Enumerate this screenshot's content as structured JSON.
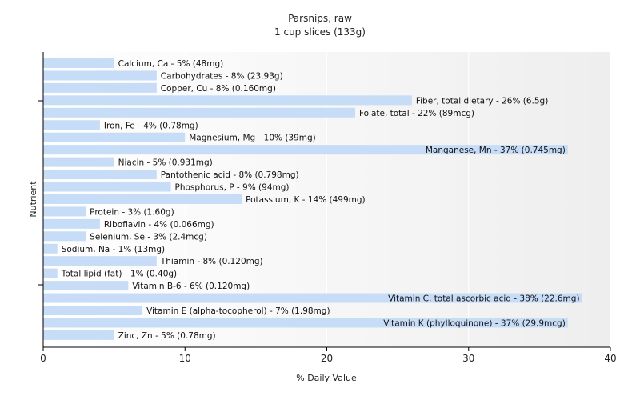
{
  "chart_data": {
    "type": "bar",
    "orientation": "horizontal",
    "title": "Parsnips, raw",
    "subtitle": "1 cup slices (133g)",
    "xlabel": "% Daily Value",
    "ylabel": "Nutrient",
    "xlim": [
      0,
      40
    ],
    "xticks": [
      0,
      10,
      20,
      30,
      40
    ],
    "grid": "vertical",
    "bar_color": "#c6dcf7",
    "categories": [
      "Calcium, Ca",
      "Carbohydrates",
      "Copper, Cu",
      "Fiber, total dietary",
      "Folate, total",
      "Iron, Fe",
      "Magnesium, Mg",
      "Manganese, Mn",
      "Niacin",
      "Pantothenic acid",
      "Phosphorus, P",
      "Potassium, K",
      "Protein",
      "Riboflavin",
      "Selenium, Se",
      "Sodium, Na",
      "Thiamin",
      "Total lipid (fat)",
      "Vitamin B-6",
      "Vitamin C, total ascorbic acid",
      "Vitamin E (alpha-tocopherol)",
      "Vitamin K (phylloquinone)",
      "Zinc, Zn"
    ],
    "values": [
      5,
      8,
      8,
      26,
      22,
      4,
      10,
      37,
      5,
      8,
      9,
      14,
      3,
      4,
      3,
      1,
      8,
      1,
      6,
      38,
      7,
      37,
      5
    ],
    "labels": [
      "Calcium, Ca - 5% (48mg)",
      "Carbohydrates - 8% (23.93g)",
      "Copper, Cu - 8% (0.160mg)",
      "Fiber, total dietary - 26% (6.5g)",
      "Folate, total - 22% (89mcg)",
      "Iron, Fe - 4% (0.78mg)",
      "Magnesium, Mg - 10% (39mg)",
      "Manganese, Mn - 37% (0.745mg)",
      "Niacin - 5% (0.931mg)",
      "Pantothenic acid - 8% (0.798mg)",
      "Phosphorus, P - 9% (94mg)",
      "Potassium, K - 14% (499mg)",
      "Protein - 3% (1.60g)",
      "Riboflavin - 4% (0.066mg)",
      "Selenium, Se - 3% (2.4mcg)",
      "Sodium, Na - 1% (13mg)",
      "Thiamin - 8% (0.120mg)",
      "Total lipid (fat) - 1% (0.40g)",
      "Vitamin B-6 - 6% (0.120mg)",
      "Vitamin C, total ascorbic acid - 38% (22.6mg)",
      "Vitamin E (alpha-tocopherol) - 7% (1.98mg)",
      "Vitamin K (phylloquinone) - 37% (29.9mcg)",
      "Zinc, Zn - 5% (0.78mg)"
    ]
  }
}
